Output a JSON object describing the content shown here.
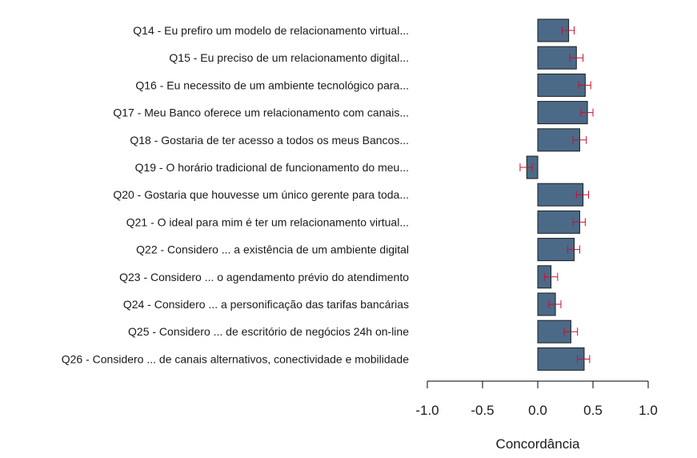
{
  "chart_data": {
    "type": "bar",
    "orientation": "horizontal",
    "title": "",
    "xlabel": "Concordância",
    "ylabel": "",
    "xlim": [
      -1.0,
      1.0
    ],
    "xticks": [
      -1.0,
      -0.5,
      0.0,
      0.5,
      1.0
    ],
    "xtick_labels": [
      "-1.0",
      "-0.5",
      "0.0",
      "0.5",
      "1.0"
    ],
    "grid": false,
    "legend": "none",
    "colors": {
      "bar_fill": "#4b6a88",
      "bar_stroke": "#1e1e1e",
      "error_bar": "#c8102e",
      "axis": "#000000"
    },
    "categories": [
      "Q14 - Eu prefiro um modelo de relacionamento virtual...",
      "Q15 - Eu preciso de um relacionamento digital...",
      "Q16 - Eu necessito de um ambiente tecnológico para...",
      "Q17 - Meu Banco oferece um relacionamento com canais...",
      "Q18 - Gostaria de ter acesso a todos os meus Bancos...",
      "Q19 - O horário tradicional de funcionamento do meu...",
      "Q20 - Gostaria que houvesse um único gerente para toda...",
      "Q21 - O ideal para mim é ter um relacionamento virtual...",
      "Q22 - Considero ... a existência de um ambiente digital",
      "Q23 - Considero ... o agendamento prévio do atendimento",
      "Q24 - Considero ... a personificação das tarifas bancárias",
      "Q25 - Considero ... de escritório de negócios 24h on-line",
      "Q26 - Considero ... de canais alternativos, conectividade e mobilidade"
    ],
    "values": [
      0.28,
      0.35,
      0.43,
      0.45,
      0.38,
      -0.1,
      0.41,
      0.38,
      0.33,
      0.12,
      0.16,
      0.3,
      0.42
    ],
    "error_low": [
      0.22,
      0.29,
      0.37,
      0.39,
      0.32,
      -0.16,
      0.35,
      0.32,
      0.27,
      0.06,
      0.1,
      0.24,
      0.36
    ],
    "error_high": [
      0.33,
      0.41,
      0.48,
      0.5,
      0.44,
      -0.05,
      0.46,
      0.43,
      0.38,
      0.18,
      0.21,
      0.36,
      0.47
    ]
  }
}
